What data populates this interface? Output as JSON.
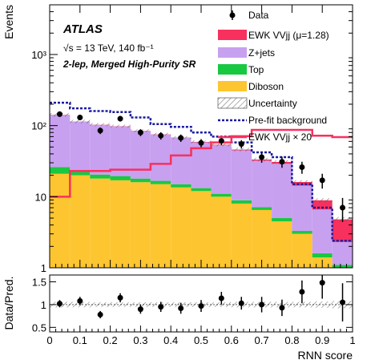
{
  "chart_data": [
    {
      "type": "stacked-histogram",
      "experiment_label": "ATLAS",
      "energy_text": "√s = 13 TeV, 140 fb⁻¹",
      "region_text": "2-lep, Merged High-Purity SR",
      "ylabel": "Events",
      "yscale": "log",
      "ylim": [
        1,
        5000
      ],
      "y_ticks": [
        {
          "value": 1,
          "label": "1"
        },
        {
          "value": 10,
          "label": "10"
        },
        {
          "value": 100,
          "label": "10²"
        },
        {
          "value": 1000,
          "label": "10³"
        }
      ],
      "x_bin_edges": [
        0,
        0.067,
        0.133,
        0.2,
        0.267,
        0.333,
        0.4,
        0.467,
        0.533,
        0.6,
        0.667,
        0.733,
        0.8,
        0.867,
        0.933,
        1.0
      ],
      "stack": [
        {
          "name": "Diboson",
          "color": "#fdc530",
          "values": [
            21,
            20,
            18,
            17,
            16,
            15,
            13.5,
            12,
            10,
            8,
            6.5,
            4.5,
            3,
            1.4,
            1.0
          ]
        },
        {
          "name": "Top",
          "color": "#18c840",
          "values": [
            5,
            3.5,
            2.5,
            2.5,
            2,
            1.7,
            1.5,
            1.2,
            1,
            0.9,
            0.6,
            0.5,
            0.3,
            0.2,
            0.1
          ]
        },
        {
          "name": "Z+jets",
          "color": "#c8a0f0",
          "values": [
            115,
            90,
            82,
            78,
            66,
            58,
            52,
            45,
            42,
            36,
            25,
            24,
            11,
            5,
            1.2
          ]
        },
        {
          "name": "EWK VVjj (μ=1.28)",
          "color": "#f8305e",
          "values": [
            1.0,
            0.7,
            0.6,
            0.6,
            0.6,
            0.6,
            0.7,
            0.8,
            0.9,
            1.1,
            1.2,
            1.8,
            1.8,
            2.3,
            2.5
          ]
        }
      ],
      "data_points": {
        "name": "Data",
        "x": [
          0.033,
          0.1,
          0.167,
          0.233,
          0.3,
          0.367,
          0.433,
          0.5,
          0.567,
          0.633,
          0.7,
          0.767,
          0.833,
          0.9,
          0.967
        ],
        "y": [
          145,
          130,
          85,
          125,
          80,
          72,
          67,
          57,
          61,
          55,
          36,
          31,
          26,
          17,
          7
        ],
        "yerr": [
          12,
          11,
          9,
          11,
          9,
          8.5,
          8,
          7.5,
          8,
          7.5,
          6,
          5.5,
          5,
          4,
          2.6
        ]
      },
      "prefit_background": {
        "name": "Pre-fit background",
        "color": "#1a1aa0",
        "values": [
          210,
          175,
          160,
          155,
          130,
          105,
          96,
          80,
          70,
          58,
          42,
          36,
          15,
          7,
          2.4
        ]
      },
      "signal_x20": {
        "name": "EWK VVjj × 20",
        "color": "#f8305e",
        "values": [
          10,
          23,
          23,
          24,
          24,
          29,
          38,
          48,
          58,
          71,
          87,
          87,
          87,
          72,
          69
        ]
      },
      "uncertainty_label": "Uncertainty",
      "legend_position": "top-right"
    },
    {
      "type": "ratio",
      "ylabel": "Data/Pred.",
      "xlabel": "RNN score",
      "ylim": [
        0.4,
        1.65
      ],
      "xlim": [
        0,
        1
      ],
      "y_ticks": [
        {
          "value": 0.5,
          "label": "0.5"
        },
        {
          "value": 1,
          "label": "1"
        },
        {
          "value": 1.5,
          "label": "1.5"
        }
      ],
      "x_ticks": [
        {
          "value": 0,
          "label": "0"
        },
        {
          "value": 0.1,
          "label": "0.1"
        },
        {
          "value": 0.2,
          "label": "0.2"
        },
        {
          "value": 0.3,
          "label": "0.3"
        },
        {
          "value": 0.4,
          "label": "0.4"
        },
        {
          "value": 0.5,
          "label": "0.5"
        },
        {
          "value": 0.6,
          "label": "0.6"
        },
        {
          "value": 0.7,
          "label": "0.7"
        },
        {
          "value": 0.8,
          "label": "0.8"
        },
        {
          "value": 0.9,
          "label": "0.9"
        },
        {
          "value": 1,
          "label": "1"
        }
      ],
      "x": [
        0.033,
        0.1,
        0.167,
        0.233,
        0.3,
        0.367,
        0.433,
        0.5,
        0.567,
        0.633,
        0.7,
        0.767,
        0.833,
        0.9,
        0.967
      ],
      "y": [
        1.02,
        1.08,
        0.78,
        1.15,
        0.9,
        0.95,
        0.92,
        0.97,
        1.14,
        1.03,
        1.0,
        0.93,
        1.28,
        1.48,
        1.05
      ],
      "yerr": [
        0.08,
        0.09,
        0.08,
        0.1,
        0.1,
        0.11,
        0.12,
        0.13,
        0.14,
        0.14,
        0.17,
        0.18,
        0.25,
        0.35,
        0.42
      ],
      "uncertainty_halfwidth": [
        0.06,
        0.06,
        0.05,
        0.05,
        0.05,
        0.05,
        0.05,
        0.05,
        0.05,
        0.06,
        0.06,
        0.06,
        0.06,
        0.07,
        0.08
      ]
    }
  ]
}
